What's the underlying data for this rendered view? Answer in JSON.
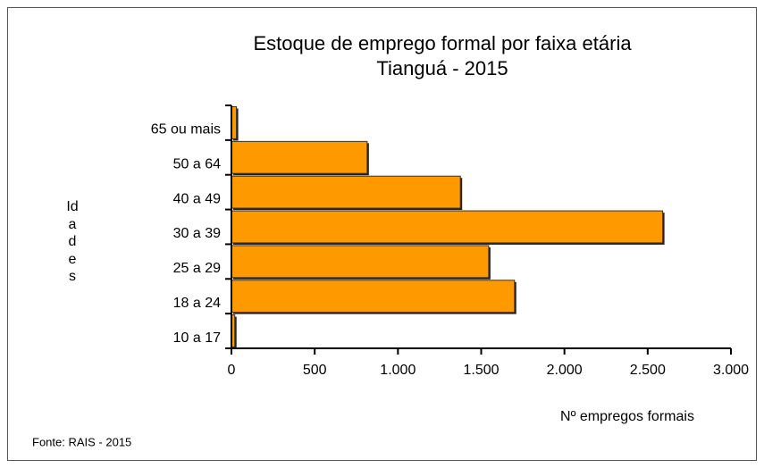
{
  "chart_data": {
    "type": "bar",
    "orientation": "horizontal",
    "title": "Estoque de emprego formal por faixa etária",
    "subtitle": "Tianguá - 2015",
    "y_label": "Idades",
    "x_label": "Nº empregos formais",
    "source": "Fonte: RAIS - 2015",
    "categories": [
      "65 ou mais",
      "50 a 64",
      "40 a 49",
      "30 a 39",
      "25 a 29",
      "18 a 24",
      "10 a 17"
    ],
    "values": [
      30,
      815,
      1375,
      2590,
      1545,
      1700,
      20
    ],
    "color": "#ff9900",
    "xlim": [
      0,
      3000
    ],
    "xticks": [
      0,
      500,
      {
        "value": 1000,
        "label": "1.000"
      },
      {
        "value": 1500,
        "label": "1.500"
      },
      {
        "value": 2000,
        "label": "2.000"
      },
      {
        "value": 2500,
        "label": "2.500"
      },
      {
        "value": 3000,
        "label": "3.000"
      }
    ],
    "grid": false
  }
}
